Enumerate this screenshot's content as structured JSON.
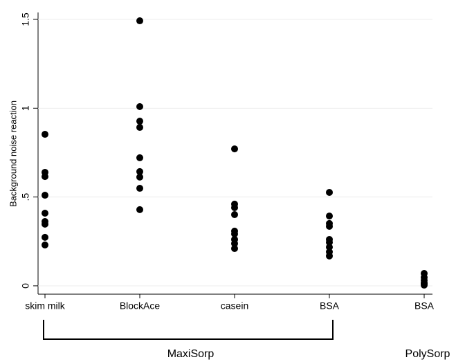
{
  "chart_data": {
    "type": "strip",
    "y_label": "Background noise reaction",
    "categories": [
      "skim milk",
      "BlockAce",
      "casein",
      "BSA",
      "BSA"
    ],
    "groups": [
      {
        "name": "MaxiSorp",
        "count": 4
      },
      {
        "name": "PolySorp",
        "count": 1
      }
    ],
    "values": [
      [
        0.853,
        0.639,
        0.615,
        0.51,
        0.409,
        0.362,
        0.347,
        0.273,
        0.23
      ],
      [
        1.492,
        1.009,
        0.927,
        0.892,
        0.721,
        0.643,
        0.612,
        0.549,
        0.429
      ],
      [
        0.771,
        0.46,
        0.44,
        0.401,
        0.308,
        0.292,
        0.261,
        0.238,
        0.21
      ],
      [
        0.526,
        0.393,
        0.351,
        0.335,
        0.261,
        0.245,
        0.218,
        0.191,
        0.168
      ],
      [
        0.07,
        0.047,
        0.031,
        0.016,
        0.012,
        0.004
      ]
    ],
    "color": "#000000",
    "ylim": [
      -0.047,
      1.539
    ],
    "yticks": [
      0,
      {
        "value": 0.5,
        "label": ".5"
      },
      1,
      1.5
    ],
    "grid": true
  }
}
